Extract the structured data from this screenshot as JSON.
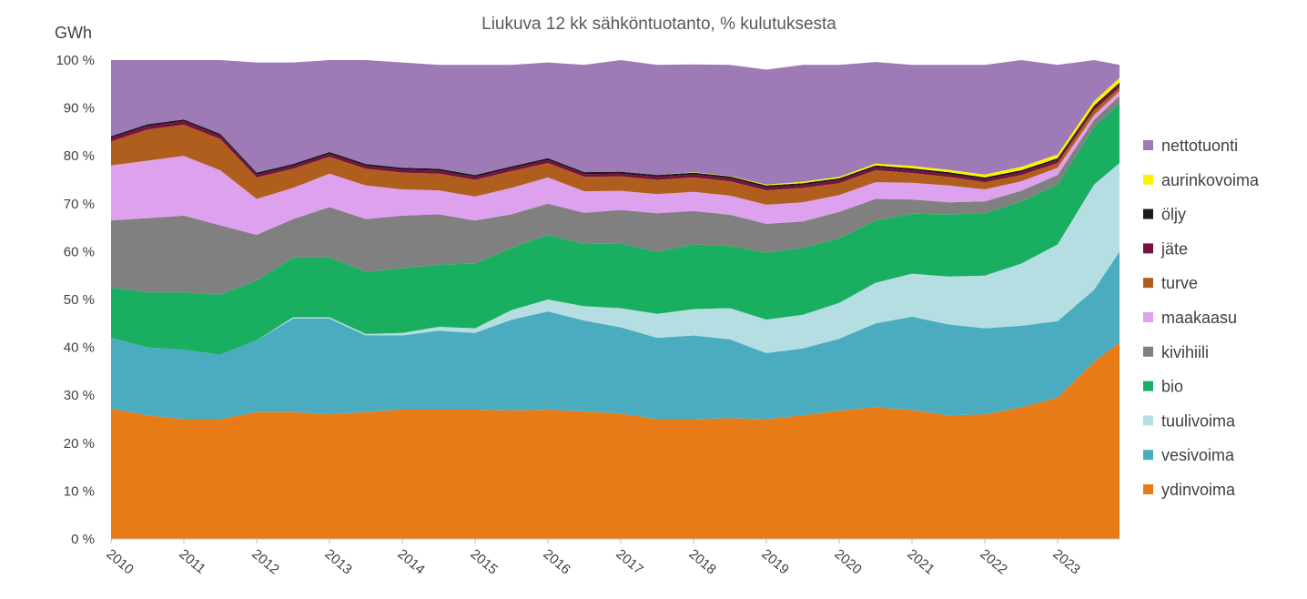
{
  "chart_data": {
    "type": "area",
    "stacked": true,
    "title": "Liukuva 12 kk sähköntuotanto, % kulutuksesta",
    "unit_label": "GWh",
    "y_ticks": [
      "0 %",
      "10 %",
      "20 %",
      "30 %",
      "40 %",
      "50 %",
      "60 %",
      "70 %",
      "80 %",
      "90 %",
      "100 %"
    ],
    "ylim": [
      0,
      100
    ],
    "x_ticks": [
      "2010",
      "2011",
      "2012",
      "2013",
      "2014",
      "2015",
      "2016",
      "2017",
      "2018",
      "2019",
      "2020",
      "2021",
      "2022",
      "2023"
    ],
    "x": [
      2010.0,
      2010.5,
      2011.0,
      2011.5,
      2012.0,
      2012.5,
      2013.0,
      2013.5,
      2014.0,
      2014.5,
      2015.0,
      2015.5,
      2016.0,
      2016.5,
      2017.0,
      2017.5,
      2018.0,
      2018.5,
      2019.0,
      2019.5,
      2020.0,
      2020.5,
      2021.0,
      2021.5,
      2022.0,
      2022.5,
      2023.0,
      2023.5,
      2023.85
    ],
    "legend_position": "right",
    "series": [
      {
        "name": "ydinvoima",
        "color": "#E67B17",
        "values": [
          27.2,
          25.8,
          25.0,
          25.0,
          26.5,
          26.5,
          26.0,
          26.5,
          27.0,
          27.0,
          27.0,
          26.8,
          27.0,
          26.6,
          26.2,
          25.0,
          25.0,
          25.2,
          25.0,
          25.8,
          26.8,
          27.5,
          26.9,
          25.8,
          26.0,
          27.5,
          29.5,
          37.0,
          41.0
        ]
      },
      {
        "name": "vesivoima",
        "color": "#4BACC0",
        "values": [
          14.8,
          14.2,
          14.5,
          13.5,
          15.0,
          19.5,
          20.0,
          16.0,
          15.5,
          16.5,
          16.0,
          19.0,
          20.5,
          19.0,
          18.0,
          17.0,
          17.5,
          16.5,
          13.8,
          14.0,
          15.0,
          17.5,
          19.5,
          19.0,
          18.0,
          17.0,
          16.0,
          15.0,
          19.0
        ]
      },
      {
        "name": "tuulivoima",
        "color": "#B4DEE2",
        "values": [
          0.0,
          0.0,
          0.0,
          0.0,
          0.0,
          0.3,
          0.3,
          0.3,
          0.5,
          0.8,
          1.0,
          2.0,
          2.5,
          3.0,
          4.0,
          5.0,
          5.5,
          6.5,
          7.0,
          7.0,
          7.5,
          8.5,
          9.0,
          10.0,
          11.0,
          13.0,
          16.0,
          22.0,
          18.5
        ]
      },
      {
        "name": "bio",
        "color": "#1AAE60",
        "values": [
          10.5,
          11.5,
          12.0,
          12.5,
          12.5,
          12.5,
          12.5,
          13.0,
          13.5,
          13.0,
          13.5,
          13.0,
          13.5,
          13.0,
          13.5,
          13.0,
          13.5,
          13.0,
          14.0,
          14.0,
          13.5,
          13.0,
          12.5,
          13.0,
          13.0,
          13.0,
          12.5,
          12.0,
          12.5
        ]
      },
      {
        "name": "kivihiili",
        "color": "#808080",
        "values": [
          14.0,
          15.5,
          16.0,
          14.5,
          9.5,
          8.0,
          10.5,
          11.0,
          11.0,
          10.5,
          9.0,
          7.0,
          6.5,
          6.5,
          7.0,
          8.0,
          7.0,
          6.5,
          6.0,
          5.5,
          5.5,
          4.5,
          3.0,
          2.5,
          2.5,
          2.2,
          2.0,
          1.5,
          1.5
        ]
      },
      {
        "name": "maakaasu",
        "color": "#DDA1EE",
        "values": [
          11.5,
          12.0,
          12.5,
          11.5,
          7.5,
          6.5,
          7.0,
          7.0,
          5.5,
          5.0,
          5.0,
          5.5,
          5.5,
          4.5,
          4.0,
          4.0,
          4.0,
          4.0,
          4.0,
          4.0,
          3.5,
          3.5,
          3.5,
          3.5,
          2.5,
          2.0,
          1.5,
          1.0,
          1.0
        ]
      },
      {
        "name": "turve",
        "color": "#B05E1D",
        "values": [
          5.0,
          6.5,
          6.5,
          6.5,
          4.5,
          4.0,
          3.5,
          3.5,
          3.5,
          3.5,
          3.5,
          3.5,
          3.0,
          3.0,
          3.0,
          3.0,
          3.0,
          3.0,
          3.0,
          3.0,
          2.5,
          2.5,
          2.0,
          1.8,
          1.5,
          1.3,
          1.0,
          1.0,
          0.8
        ]
      },
      {
        "name": "jäte",
        "color": "#7A1040",
        "values": [
          0.7,
          0.7,
          0.7,
          0.7,
          0.6,
          0.6,
          0.6,
          0.6,
          0.6,
          0.6,
          0.6,
          0.6,
          0.6,
          0.6,
          0.6,
          0.6,
          0.6,
          0.6,
          0.6,
          0.6,
          0.6,
          0.6,
          0.6,
          0.6,
          0.6,
          0.6,
          0.6,
          0.6,
          0.6
        ]
      },
      {
        "name": "öljy",
        "color": "#1A1A1A",
        "values": [
          0.4,
          0.4,
          0.4,
          0.4,
          0.4,
          0.4,
          0.4,
          0.4,
          0.4,
          0.4,
          0.4,
          0.4,
          0.4,
          0.4,
          0.4,
          0.4,
          0.4,
          0.4,
          0.4,
          0.4,
          0.4,
          0.4,
          0.4,
          0.4,
          0.4,
          0.4,
          0.4,
          0.4,
          0.4
        ]
      },
      {
        "name": "aurinkovoima",
        "color": "#FFF200",
        "values": [
          0.0,
          0.0,
          0.0,
          0.0,
          0.0,
          0.0,
          0.0,
          0.0,
          0.0,
          0.0,
          0.0,
          0.0,
          0.0,
          0.0,
          0.0,
          0.0,
          0.1,
          0.1,
          0.2,
          0.3,
          0.3,
          0.4,
          0.5,
          0.5,
          0.6,
          0.7,
          0.8,
          0.9,
          1.0
        ]
      },
      {
        "name": "nettotuonti",
        "color": "#9E7AB6",
        "values": [
          15.9,
          13.4,
          12.4,
          15.4,
          23.0,
          21.2,
          19.2,
          21.7,
          22.0,
          21.7,
          23.0,
          21.2,
          20.0,
          22.4,
          23.3,
          23.0,
          22.5,
          23.2,
          24.0,
          24.4,
          23.4,
          21.2,
          21.1,
          21.9,
          22.9,
          22.3,
          18.7,
          8.6,
          2.7
        ]
      }
    ]
  }
}
